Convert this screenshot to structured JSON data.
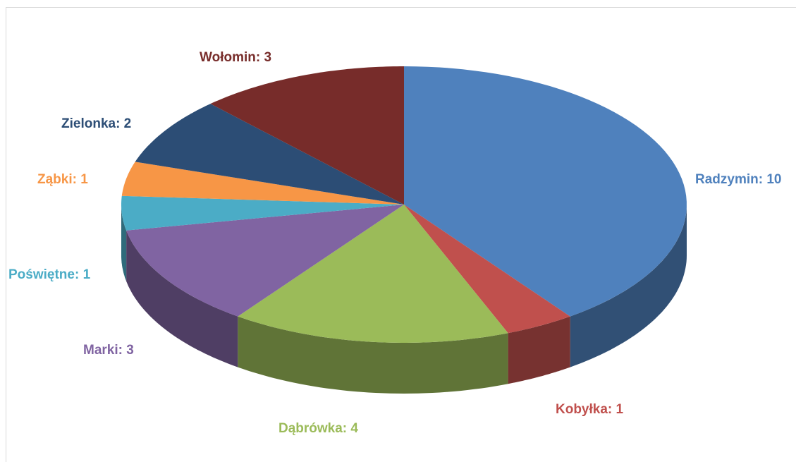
{
  "chart_data": {
    "type": "pie3d",
    "values": [
      10,
      1,
      4,
      3,
      1,
      1,
      2,
      3
    ],
    "value_labels": [
      "Radzymin: 10",
      "Kobyłka: 1",
      "Dąbrówka: 4",
      "Marki: 3",
      "Poświętne: 1",
      "Ząbki: 1",
      "Zielonka: 2",
      "Wołomin: 3"
    ],
    "colors": [
      "#4f81bd",
      "#c0504d",
      "#9bbb59",
      "#8064a2",
      "#4bacc6",
      "#f79646",
      "#2c4d75",
      "#772c2a"
    ]
  }
}
